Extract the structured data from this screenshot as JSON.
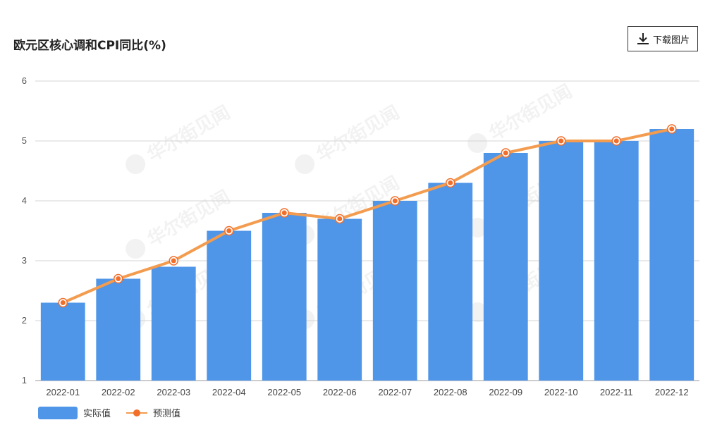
{
  "header": {
    "title": "欧元区核心调和CPI同比(%)",
    "download_label": "下载图片"
  },
  "legend": {
    "actual_label": "实际值",
    "forecast_label": "预测值"
  },
  "chart_data": {
    "type": "bar",
    "title": "欧元区核心调和CPI同比(%)",
    "xlabel": "",
    "ylabel": "",
    "ylim": [
      1,
      6
    ],
    "yticks": [
      1,
      2,
      3,
      4,
      5,
      6
    ],
    "grid": true,
    "legend_position": "bottom-left",
    "watermark": "华尔街见闻",
    "categories": [
      "2022-01",
      "2022-02",
      "2022-03",
      "2022-04",
      "2022-05",
      "2022-06",
      "2022-07",
      "2022-08",
      "2022-09",
      "2022-10",
      "2022-11",
      "2022-12"
    ],
    "series": [
      {
        "name": "实际值",
        "type": "bar",
        "color": "#4f95e8",
        "values": [
          2.3,
          2.7,
          2.9,
          3.5,
          3.8,
          3.7,
          4.0,
          4.3,
          4.8,
          5.0,
          5.0,
          5.2
        ]
      },
      {
        "name": "预测值",
        "type": "line",
        "color": "#f39c4f",
        "values": [
          2.3,
          2.7,
          3.0,
          3.5,
          3.8,
          3.7,
          4.0,
          4.3,
          4.8,
          5.0,
          5.0,
          5.2
        ]
      }
    ]
  }
}
